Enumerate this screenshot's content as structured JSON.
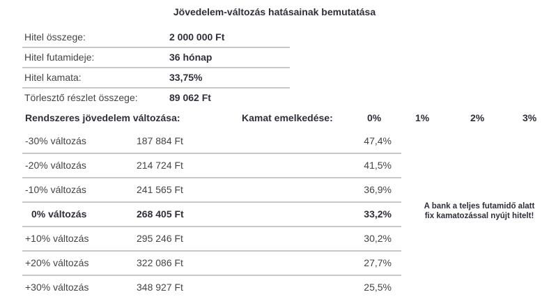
{
  "title": "Jövedelem-változás hatásainak bemutatása",
  "loan_info": [
    {
      "label": "Hitel összege:",
      "value": "2 000 000 Ft"
    },
    {
      "label": "Hitel futamideje:",
      "value": "36 hónap"
    },
    {
      "label": "Hitel kamata:",
      "value": "33,75%"
    },
    {
      "label": "Törlesztő részlet összege:",
      "value": "89 062 Ft"
    }
  ],
  "header": {
    "income_change": "Rendszeres jövedelem változása:",
    "rate_increase": "Kamat emelkedése:",
    "rates": [
      "0%",
      "1%",
      "2%",
      "3%"
    ]
  },
  "rows": [
    {
      "change": "-30% változás",
      "income": "187 884 Ft",
      "pct": "47,4%"
    },
    {
      "change": "-20% változás",
      "income": "214 724 Ft",
      "pct": "41,5%"
    },
    {
      "change": "-10% változás",
      "income": "241 565 Ft",
      "pct": "36,9%"
    },
    {
      "change": "0% változás",
      "income": "268 405 Ft",
      "pct": "33,2%"
    },
    {
      "change": "+10% változás",
      "income": "295 246 Ft",
      "pct": "30,2%"
    },
    {
      "change": "+20% változás",
      "income": "322 086 Ft",
      "pct": "27,7%"
    },
    {
      "change": "+30% változás",
      "income": "348 927 Ft",
      "pct": "25,5%"
    }
  ],
  "note": {
    "line1": "A bank a teljes futamidő alatt",
    "line2": "fix kamatozással nyújt hitelt!"
  }
}
